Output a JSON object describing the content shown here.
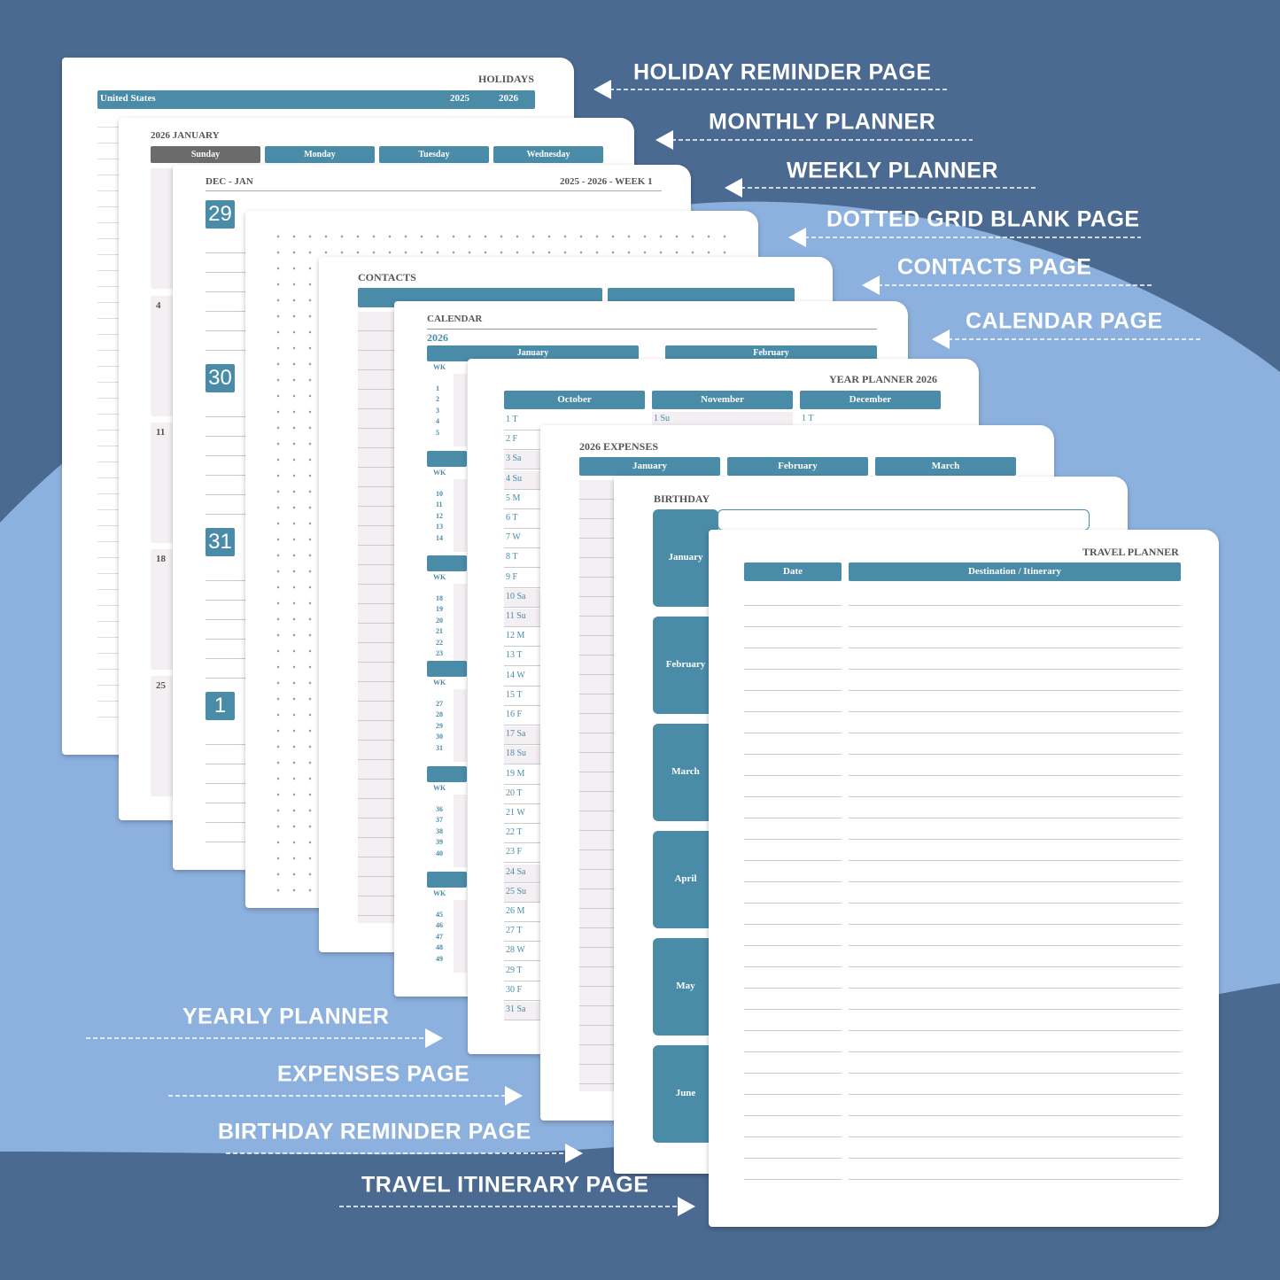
{
  "labels_right": [
    "HOLIDAY REMINDER PAGE",
    "MONTHLY PLANNER",
    "WEEKLY PLANNER",
    "DOTTED GRID BLANK PAGE",
    "CONTACTS PAGE",
    "CALENDAR PAGE"
  ],
  "labels_bottom": [
    "YEARLY PLANNER",
    "EXPENSES PAGE",
    "BIRTHDAY REMINDER PAGE",
    "TRAVEL ITINERARY PAGE"
  ],
  "holidays": {
    "title": "HOLIDAYS",
    "country": "United States",
    "years": [
      "2025",
      "2026"
    ]
  },
  "monthly": {
    "title": "2026 JANUARY",
    "days": [
      "Sunday",
      "Monday",
      "Tuesday",
      "Wednesday"
    ],
    "dates": [
      "4",
      "11",
      "18",
      "25"
    ]
  },
  "weekly": {
    "range": "DEC - JAN",
    "week": "2025 - 2026 - WEEK 1",
    "days": [
      "29",
      "30",
      "31",
      "1"
    ]
  },
  "contacts": {
    "title": "CONTACTS"
  },
  "calendar": {
    "title": "CALENDAR",
    "year": "2026",
    "months": [
      "January",
      "February"
    ],
    "wk": "WK",
    "weeks": [
      [
        "1",
        "2",
        "3",
        "4",
        "5"
      ],
      [
        "10",
        "11",
        "12",
        "13",
        "14"
      ],
      [
        "18",
        "19",
        "20",
        "21",
        "22",
        "23"
      ],
      [
        "27",
        "28",
        "29",
        "30",
        "31"
      ],
      [
        "36",
        "37",
        "38",
        "39",
        "40"
      ],
      [
        "45",
        "46",
        "47",
        "48",
        "49"
      ]
    ]
  },
  "year_planner": {
    "title": "YEAR PLANNER 2026",
    "months": [
      "October",
      "November",
      "December"
    ],
    "october_days": [
      "1 T",
      "2 F",
      "3 Sa",
      "4 Su",
      "5 M",
      "6 T",
      "7 W",
      "8 T",
      "9 F",
      "10 Sa",
      "11 Su",
      "12 M",
      "13 T",
      "14 W",
      "15 T",
      "16 F",
      "17 Sa",
      "18 Su",
      "19 M",
      "20 T",
      "21 W",
      "22 T",
      "23 F",
      "24 Sa",
      "25 Su",
      "26 M",
      "27 T",
      "28 W",
      "29 T",
      "30 F",
      "31 Sa"
    ],
    "november_first": "1  Su",
    "december_first": "1  T"
  },
  "expenses": {
    "title": "2026 EXPENSES",
    "months": [
      "January",
      "February",
      "March"
    ]
  },
  "birthday": {
    "title": "BIRTHDAY",
    "months": [
      "January",
      "February",
      "March",
      "April",
      "May",
      "June"
    ]
  },
  "travel": {
    "title": "TRAVEL PLANNER",
    "columns": [
      "Date",
      "Destination / Itinerary"
    ]
  }
}
